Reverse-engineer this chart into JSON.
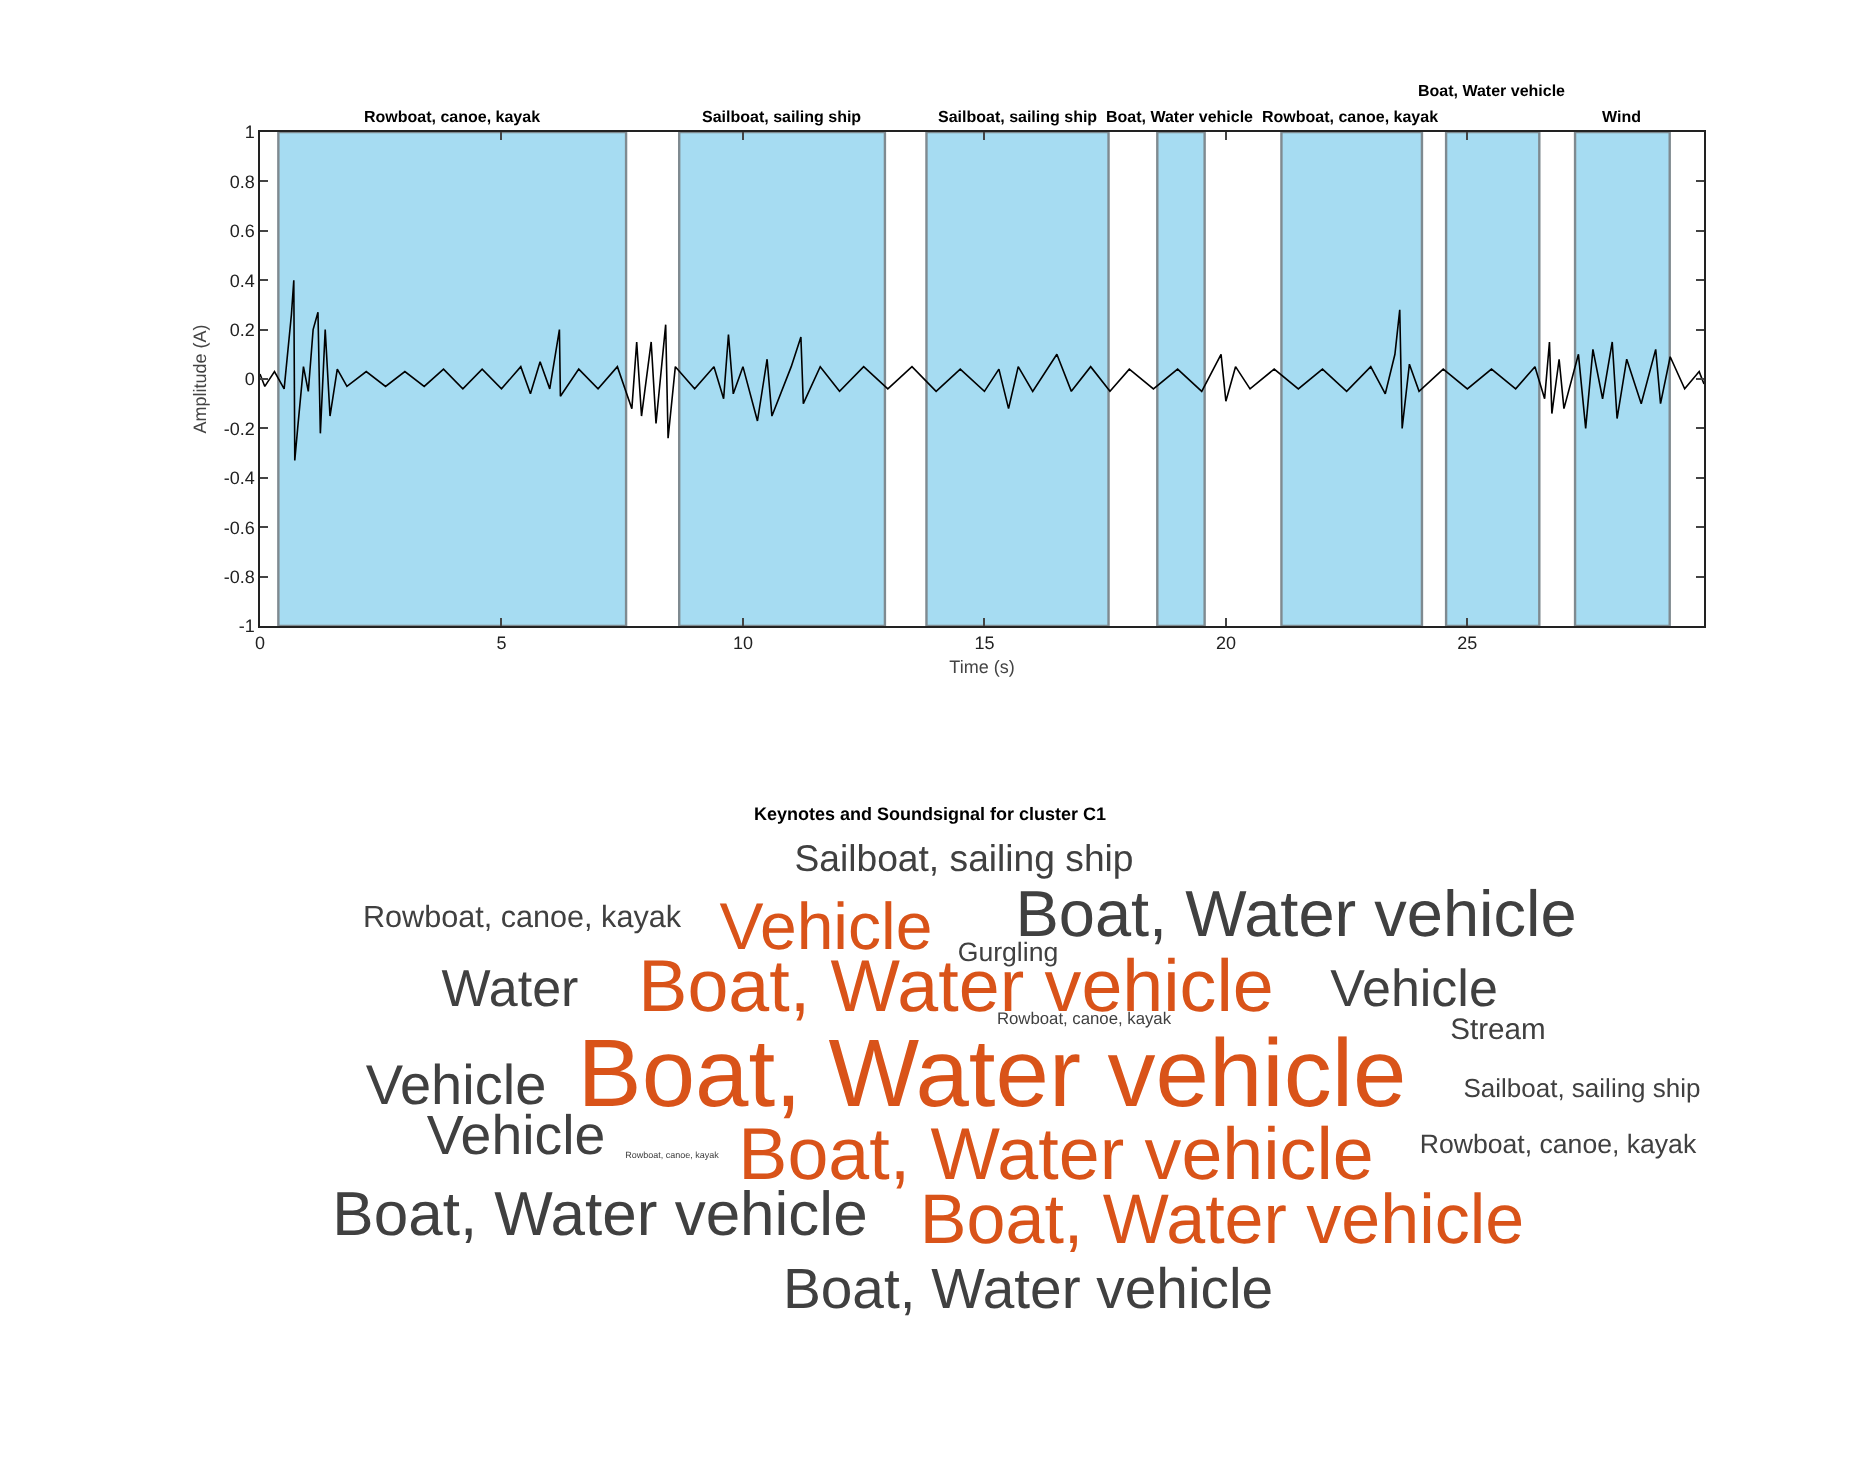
{
  "chart_data": [
    {
      "type": "line",
      "xlabel": "Time (s)",
      "ylabel": "Amplitude (A)",
      "xlim": [
        0,
        29.9
      ],
      "ylim": [
        -1,
        1
      ],
      "xticks": [
        0,
        5,
        10,
        15,
        20,
        25
      ],
      "yticks": [
        -1,
        -0.8,
        -0.6,
        -0.4,
        -0.2,
        0,
        0.2,
        0.4,
        0.6,
        0.8,
        1
      ],
      "x": [
        0,
        0.1,
        0.3,
        0.5,
        0.65,
        0.7,
        0.72,
        0.78,
        0.9,
        1.0,
        1.1,
        1.2,
        1.25,
        1.35,
        1.45,
        1.6,
        1.8,
        2.2,
        2.6,
        3.0,
        3.4,
        3.8,
        4.2,
        4.6,
        5.0,
        5.4,
        5.6,
        5.8,
        6.0,
        6.2,
        6.22,
        6.6,
        7.0,
        7.4,
        7.7,
        7.8,
        7.9,
        8.1,
        8.2,
        8.4,
        8.45,
        8.6,
        9.0,
        9.4,
        9.6,
        9.7,
        9.8,
        10.0,
        10.3,
        10.5,
        10.6,
        11.0,
        11.2,
        11.25,
        11.6,
        12.0,
        12.5,
        13.0,
        13.5,
        14.0,
        14.5,
        15.0,
        15.3,
        15.5,
        15.7,
        16.0,
        16.5,
        16.8,
        17.2,
        17.6,
        18.0,
        18.5,
        19.0,
        19.5,
        19.9,
        20.0,
        20.2,
        20.5,
        21.0,
        21.5,
        22.0,
        22.5,
        23.0,
        23.3,
        23.5,
        23.6,
        23.65,
        23.8,
        24.0,
        24.5,
        25.0,
        25.5,
        26.0,
        26.4,
        26.6,
        26.7,
        26.75,
        26.9,
        27.0,
        27.3,
        27.45,
        27.6,
        27.8,
        28.0,
        28.1,
        28.3,
        28.6,
        28.9,
        29.0,
        29.2,
        29.5,
        29.8,
        29.9
      ],
      "series": [
        {
          "color": "#000000",
          "values": [
            0.02,
            -0.03,
            0.03,
            -0.04,
            0.26,
            0.4,
            -0.33,
            -0.2,
            0.05,
            -0.05,
            0.2,
            0.27,
            -0.22,
            0.2,
            -0.15,
            0.04,
            -0.03,
            0.03,
            -0.03,
            0.03,
            -0.03,
            0.04,
            -0.04,
            0.04,
            -0.04,
            0.05,
            -0.06,
            0.07,
            -0.04,
            0.2,
            -0.07,
            0.04,
            -0.04,
            0.05,
            -0.12,
            0.15,
            -0.15,
            0.15,
            -0.18,
            0.22,
            -0.24,
            0.05,
            -0.04,
            0.05,
            -0.08,
            0.18,
            -0.06,
            0.05,
            -0.17,
            0.08,
            -0.15,
            0.05,
            0.17,
            -0.1,
            0.05,
            -0.05,
            0.05,
            -0.04,
            0.05,
            -0.05,
            0.04,
            -0.05,
            0.04,
            -0.12,
            0.05,
            -0.05,
            0.1,
            -0.05,
            0.05,
            -0.05,
            0.04,
            -0.04,
            0.04,
            -0.05,
            0.1,
            -0.09,
            0.05,
            -0.04,
            0.04,
            -0.04,
            0.04,
            -0.05,
            0.05,
            -0.06,
            0.1,
            0.28,
            -0.2,
            0.06,
            -0.05,
            0.04,
            -0.04,
            0.04,
            -0.04,
            0.05,
            -0.08,
            0.15,
            -0.14,
            0.08,
            -0.12,
            0.1,
            -0.2,
            0.12,
            -0.08,
            0.15,
            -0.16,
            0.08,
            -0.1,
            0.12,
            -0.1,
            0.09,
            -0.04,
            0.03,
            -0.02
          ]
        }
      ],
      "bands": [
        {
          "axis": "x",
          "from": 0.38,
          "to": 7.58,
          "label": "Rowboat, canoe, kayak",
          "color": "#a6dcf2"
        },
        {
          "axis": "x",
          "from": 8.68,
          "to": 12.94,
          "label": "Sailboat, sailing ship",
          "color": "#a6dcf2"
        },
        {
          "axis": "x",
          "from": 13.8,
          "to": 17.57,
          "label": "Sailboat, sailing ship",
          "color": "#a6dcf2"
        },
        {
          "axis": "x",
          "from": 18.58,
          "to": 19.56,
          "label": "Boat, Water vehicle",
          "color": "#a6dcf2"
        },
        {
          "axis": "x",
          "from": 21.15,
          "to": 24.06,
          "label": "Rowboat, canoe, kayak",
          "color": "#a6dcf2"
        },
        {
          "axis": "x",
          "from": 24.56,
          "to": 26.49,
          "label": "Boat, Water vehicle",
          "color": "#a6dcf2"
        },
        {
          "axis": "x",
          "from": 27.23,
          "to": 29.19,
          "label": "Wind",
          "color": "#a6dcf2"
        }
      ]
    },
    {
      "type": "other",
      "title": "Keynotes and Soundsignal for cluster C1",
      "annotations": [
        "Sailboat, sailing ship",
        "Rowboat, canoe, kayak",
        "Vehicle",
        "Boat, Water vehicle",
        "Gurgling",
        "Water",
        "Boat, Water vehicle",
        "Vehicle",
        "Rowboat, canoe, kayak",
        "Stream",
        "Boat, Water vehicle",
        "Vehicle",
        "Sailboat, sailing ship",
        "Vehicle",
        "Rowboat, canoe, kayak",
        "Boat, Water vehicle",
        "Rowboat, canoe, kayak",
        "Boat, Water vehicle",
        "Boat, Water vehicle",
        "Boat, Water vehicle"
      ],
      "colors": [
        "#404040",
        "#404040",
        "#d95319",
        "#404040",
        "#404040",
        "#404040",
        "#d95319",
        "#404040",
        "#404040",
        "#404040",
        "#d95319",
        "#404040",
        "#404040",
        "#404040",
        "#404040",
        "#d95319",
        "#404040",
        "#404040",
        "#d95319",
        "#404040"
      ]
    }
  ]
}
